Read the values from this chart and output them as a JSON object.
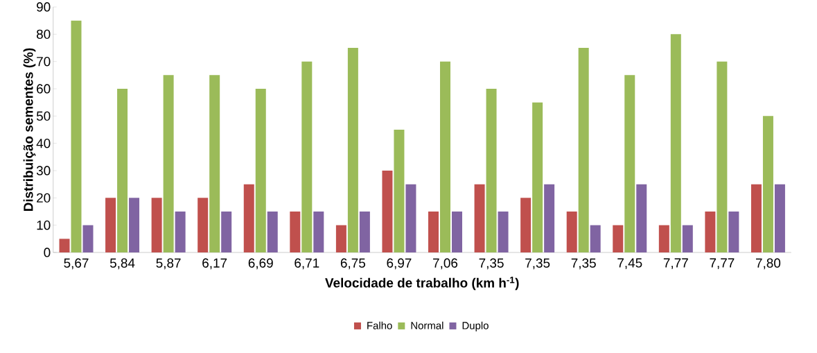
{
  "chart_data": {
    "type": "bar",
    "xlabel": "Velocidade de trabalho (km h$^{-1}$)",
    "ylabel": "Distribuição sementes (%)",
    "categories": [
      "5,67",
      "5,84",
      "5,87",
      "6,17",
      "6,69",
      "6,71",
      "6,75",
      "6,97",
      "7,06",
      "7,35",
      "7,35",
      "7,35",
      "7,45",
      "7,77",
      "7,77",
      "7,80"
    ],
    "series": [
      {
        "name": "Falho",
        "color": "#c0504d",
        "values": [
          5,
          20,
          20,
          20,
          25,
          15,
          10,
          30,
          15,
          25,
          20,
          15,
          10,
          10,
          15,
          25
        ]
      },
      {
        "name": "Normal",
        "color": "#9bbb59",
        "values": [
          85,
          60,
          65,
          65,
          60,
          70,
          75,
          45,
          70,
          60,
          55,
          75,
          65,
          80,
          70,
          50
        ]
      },
      {
        "name": "Duplo",
        "color": "#8064a2",
        "values": [
          10,
          20,
          15,
          15,
          15,
          15,
          15,
          25,
          15,
          15,
          25,
          10,
          25,
          10,
          15,
          25
        ]
      }
    ],
    "ylim": [
      0,
      90
    ],
    "yticks": [
      0,
      10,
      20,
      30,
      40,
      50,
      60,
      70,
      80,
      90
    ],
    "grid": false,
    "legend": "bottom"
  }
}
